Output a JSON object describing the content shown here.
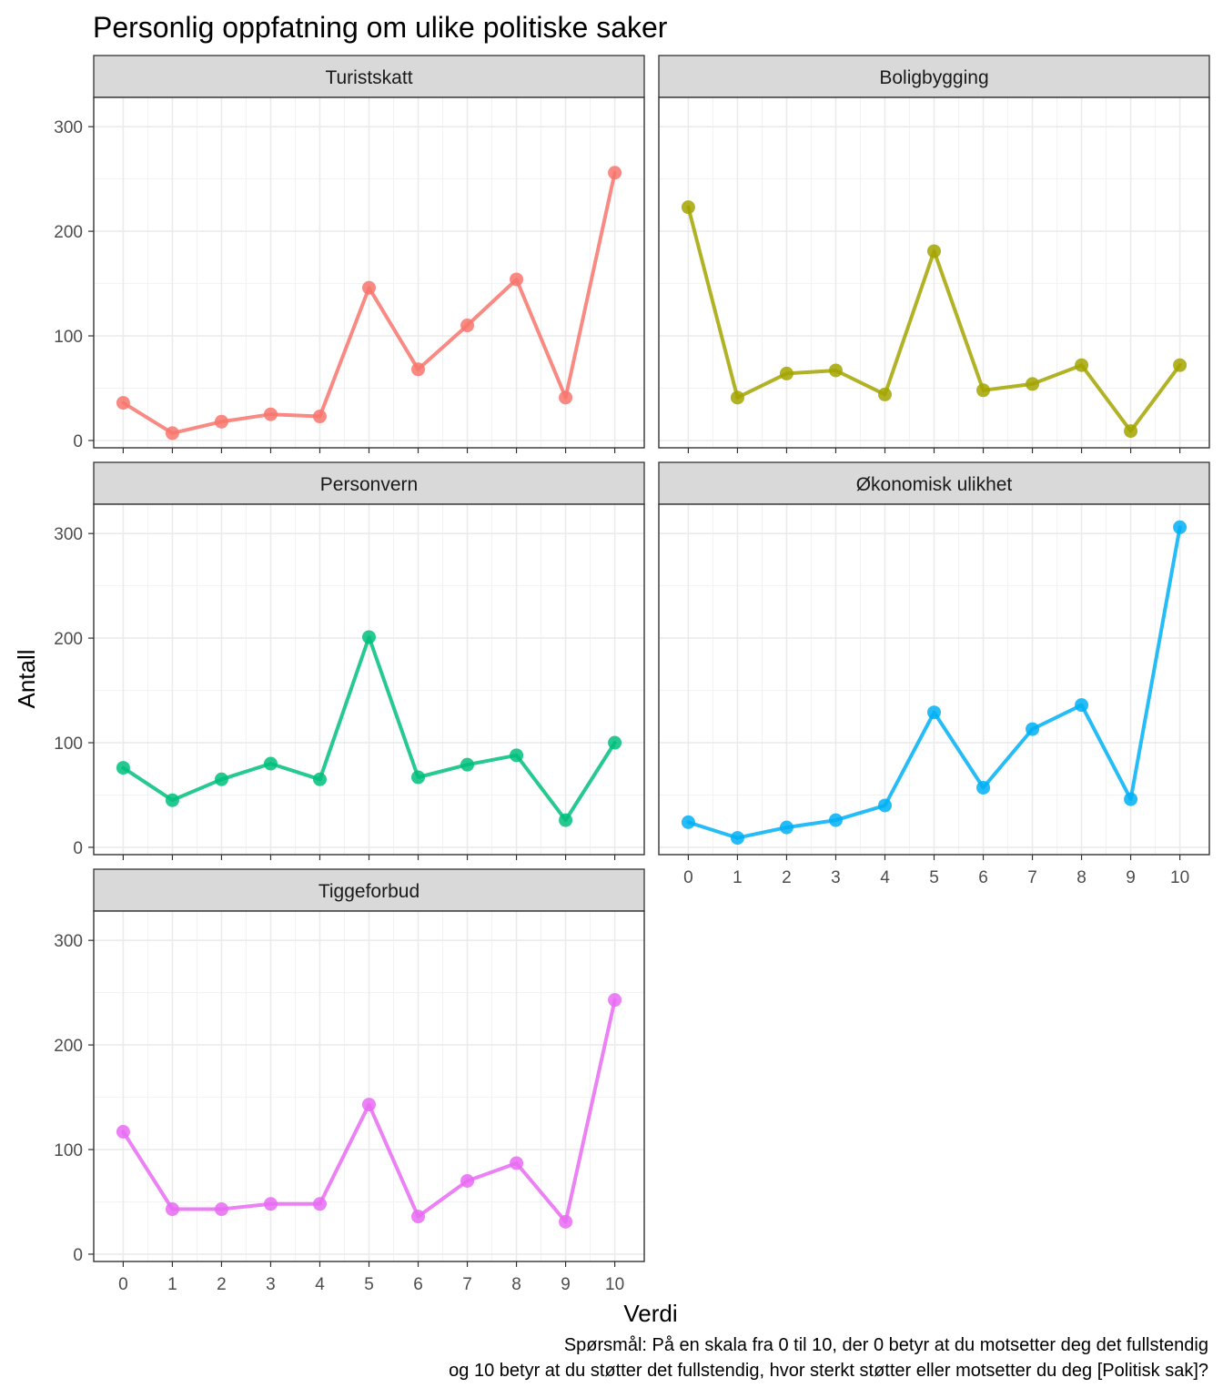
{
  "chart_data": {
    "type": "line",
    "title": "Personlig oppfatning om ulike politiske saker",
    "xlabel": "Verdi",
    "ylabel": "Antall",
    "caption": [
      "Spørsmål: På en skala fra 0 til 10, der 0 betyr at du motsetter deg det fullstendig",
      "og 10 betyr at du støtter det fullstendig, hvor sterkt støtter eller motsetter du deg [Politisk sak]?"
    ],
    "x": [
      0,
      1,
      2,
      3,
      4,
      5,
      6,
      7,
      8,
      9,
      10
    ],
    "x_ticks": [
      "0",
      "1",
      "2",
      "3",
      "4",
      "5",
      "6",
      "7",
      "8",
      "9",
      "10"
    ],
    "y_ticks": [
      "0",
      "100",
      "200",
      "300"
    ],
    "ylim": [
      -7,
      328
    ],
    "xlim": [
      -0.6,
      10.6
    ],
    "grid": true,
    "legend": "none",
    "facets": [
      {
        "name": "Turistskatt",
        "color": "#F8766D",
        "values": [
          36,
          7,
          18,
          25,
          23,
          146,
          68,
          110,
          154,
          41,
          256
        ]
      },
      {
        "name": "Boligbygging",
        "color": "#A3A500",
        "values": [
          223,
          41,
          64,
          67,
          44,
          181,
          48,
          54,
          72,
          9,
          72
        ]
      },
      {
        "name": "Personvern",
        "color": "#00BF7D",
        "values": [
          76,
          45,
          65,
          80,
          65,
          201,
          67,
          79,
          88,
          26,
          100
        ]
      },
      {
        "name": "Økonomisk ulikhet",
        "color": "#00B0F6",
        "values": [
          24,
          9,
          19,
          26,
          40,
          129,
          57,
          113,
          136,
          46,
          306
        ]
      },
      {
        "name": "Tiggeforbud",
        "color": "#E76BF3",
        "values": [
          117,
          43,
          43,
          48,
          48,
          143,
          36,
          70,
          87,
          31,
          243
        ]
      }
    ]
  }
}
